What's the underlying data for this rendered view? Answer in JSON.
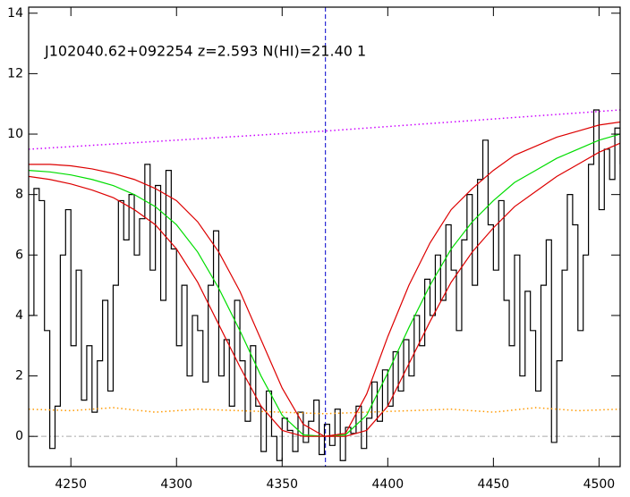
{
  "chart_data": {
    "type": "line",
    "annotation": "J102040.62+092254 z=2.593 N(HI)=21.40 1",
    "xlim": [
      4230,
      4510
    ],
    "ylim": [
      -1,
      14.2
    ],
    "xticks": [
      4250,
      4300,
      4350,
      4400,
      4450,
      4500
    ],
    "yticks": [
      0,
      2,
      4,
      6,
      8,
      10,
      12,
      14
    ],
    "reference_y": 0,
    "marker_x": 4370.5,
    "series": [
      {
        "style": "step",
        "color": "#000000",
        "x": [
          4230,
          4232.5,
          4235,
          4237.5,
          4240,
          4242.5,
          4245,
          4247.5,
          4250,
          4252.5,
          4255,
          4257.5,
          4260,
          4262.5,
          4265,
          4267.5,
          4270,
          4272.5,
          4275,
          4277.5,
          4280,
          4282.5,
          4285,
          4287.5,
          4290,
          4292.5,
          4295,
          4297.5,
          4300,
          4302.5,
          4305,
          4307.5,
          4310,
          4312.5,
          4315,
          4317.5,
          4320,
          4322.5,
          4325,
          4327.5,
          4330,
          4332.5,
          4335,
          4337.5,
          4340,
          4342.5,
          4345,
          4347.5,
          4350,
          4352.5,
          4355,
          4357.5,
          4360,
          4362.5,
          4365,
          4367.5,
          4370,
          4372.5,
          4375,
          4377.5,
          4380,
          4382.5,
          4385,
          4387.5,
          4390,
          4392.5,
          4395,
          4397.5,
          4400,
          4402.5,
          4405,
          4407.5,
          4410,
          4412.5,
          4415,
          4417.5,
          4420,
          4422.5,
          4425,
          4427.5,
          4430,
          4432.5,
          4435,
          4437.5,
          4440,
          4442.5,
          4445,
          4447.5,
          4450,
          4452.5,
          4455,
          4457.5,
          4460,
          4462.5,
          4465,
          4467.5,
          4470,
          4472.5,
          4475,
          4477.5,
          4480,
          4482.5,
          4485,
          4487.5,
          4490,
          4492.5,
          4495,
          4497.5,
          4500,
          4502.5,
          4505,
          4507.5,
          4510
        ],
        "values": [
          4.0,
          8.2,
          7.8,
          3.5,
          -0.4,
          1.0,
          6.0,
          7.5,
          3.0,
          5.5,
          1.2,
          3.0,
          0.8,
          2.5,
          4.5,
          1.5,
          5.0,
          7.8,
          6.5,
          8.0,
          6.0,
          7.2,
          9.0,
          5.5,
          8.3,
          4.5,
          8.8,
          6.2,
          3.0,
          5.0,
          2.0,
          4.0,
          3.5,
          1.8,
          5.0,
          6.8,
          2.0,
          3.2,
          1.0,
          4.5,
          2.5,
          0.5,
          3.0,
          1.0,
          -0.5,
          1.5,
          0.0,
          -0.8,
          0.6,
          0.2,
          -0.5,
          0.8,
          -0.2,
          0.5,
          1.2,
          -0.6,
          0.4,
          -0.3,
          0.9,
          -0.8,
          0.3,
          0.1,
          1.0,
          -0.4,
          0.6,
          1.8,
          0.5,
          2.2,
          1.0,
          2.8,
          1.5,
          3.2,
          2.0,
          4.0,
          3.0,
          5.2,
          4.0,
          6.0,
          4.5,
          7.0,
          5.5,
          3.5,
          6.5,
          8.0,
          5.0,
          8.5,
          9.8,
          7.0,
          5.5,
          7.8,
          4.5,
          3.0,
          6.0,
          2.0,
          4.8,
          3.5,
          1.5,
          5.0,
          6.5,
          -0.2,
          2.5,
          5.5,
          8.0,
          7.0,
          3.5,
          6.0,
          9.0,
          10.8,
          7.5,
          9.5,
          8.5,
          10.2,
          9.0
        ]
      },
      {
        "style": "solid",
        "color": "#00dd00",
        "x": [
          4230,
          4240,
          4250,
          4260,
          4270,
          4280,
          4290,
          4300,
          4310,
          4320,
          4330,
          4340,
          4350,
          4360,
          4370,
          4380,
          4390,
          4400,
          4410,
          4420,
          4430,
          4440,
          4450,
          4460,
          4470,
          4480,
          4490,
          4500,
          4510
        ],
        "values": [
          8.8,
          8.75,
          8.65,
          8.5,
          8.3,
          8.0,
          7.6,
          7.0,
          6.1,
          4.9,
          3.5,
          2.0,
          0.7,
          0.05,
          0,
          0.05,
          0.7,
          2.1,
          3.6,
          5.0,
          6.2,
          7.1,
          7.8,
          8.4,
          8.8,
          9.2,
          9.5,
          9.8,
          10.0
        ]
      },
      {
        "style": "solid",
        "color": "#dd0000",
        "x": [
          4230,
          4240,
          4250,
          4260,
          4270,
          4280,
          4290,
          4300,
          4310,
          4320,
          4330,
          4340,
          4350,
          4360,
          4370,
          4380,
          4390,
          4400,
          4410,
          4420,
          4430,
          4440,
          4450,
          4460,
          4470,
          4480,
          4490,
          4500,
          4510
        ],
        "values": [
          9.0,
          9.0,
          8.95,
          8.85,
          8.7,
          8.5,
          8.2,
          7.8,
          7.1,
          6.1,
          4.8,
          3.2,
          1.6,
          0.4,
          0.0,
          0.1,
          1.4,
          3.3,
          5.0,
          6.4,
          7.5,
          8.2,
          8.8,
          9.3,
          9.6,
          9.9,
          10.1,
          10.3,
          10.4
        ]
      },
      {
        "style": "solid",
        "color": "#dd0000",
        "x": [
          4230,
          4240,
          4250,
          4260,
          4270,
          4280,
          4290,
          4300,
          4310,
          4320,
          4330,
          4340,
          4350,
          4360,
          4370,
          4380,
          4390,
          4400,
          4410,
          4420,
          4430,
          4440,
          4450,
          4460,
          4470,
          4480,
          4490,
          4500,
          4510
        ],
        "values": [
          8.6,
          8.5,
          8.35,
          8.15,
          7.9,
          7.5,
          7.0,
          6.2,
          5.1,
          3.7,
          2.3,
          1.0,
          0.2,
          0,
          0,
          0,
          0.2,
          1.0,
          2.4,
          3.8,
          5.1,
          6.1,
          6.9,
          7.6,
          8.1,
          8.6,
          9.0,
          9.4,
          9.7
        ]
      },
      {
        "style": "dotted",
        "color": "#cc00ff",
        "x": [
          4230,
          4370,
          4510
        ],
        "values": [
          9.5,
          10.1,
          10.8
        ]
      },
      {
        "style": "dotted",
        "color": "#ff9900",
        "x": [
          4230,
          4250,
          4270,
          4290,
          4310,
          4330,
          4350,
          4370,
          4390,
          4410,
          4430,
          4450,
          4470,
          4490,
          4510
        ],
        "values": [
          0.9,
          0.85,
          0.95,
          0.8,
          0.9,
          0.85,
          0.8,
          0.75,
          0.8,
          0.85,
          0.9,
          0.8,
          0.95,
          0.85,
          0.9
        ]
      }
    ]
  }
}
